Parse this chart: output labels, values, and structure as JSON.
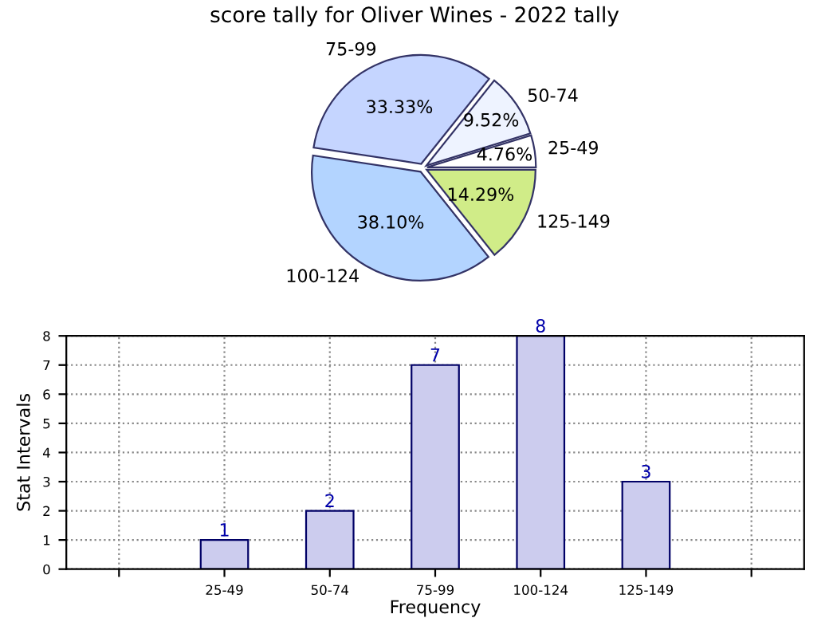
{
  "chart_data": [
    {
      "type": "pie",
      "title": "score tally for Oliver Wines - 2022 tally",
      "categories": [
        "25-49",
        "50-74",
        "75-99",
        "100-124",
        "125-149"
      ],
      "values": [
        4.76,
        9.52,
        33.33,
        38.1,
        14.29
      ],
      "colors": [
        "#ffffff",
        "#eef3ff",
        "#c5d5ff",
        "#b3d4ff",
        "#d0ec88"
      ],
      "value_labels": [
        "4.76%",
        "9.52%",
        "33.33%",
        "38.10%",
        "14.29%"
      ]
    },
    {
      "type": "bar",
      "categories": [
        null,
        "25-49",
        "50-74",
        "75-99",
        "100-124",
        "125-149",
        null
      ],
      "values": [
        null,
        1,
        2,
        7,
        8,
        3,
        null
      ],
      "color": "#ccccee",
      "xlabel": "Frequency",
      "ylabel": "Stat Intervals",
      "ylim": [
        0,
        8
      ],
      "yticks": [
        0,
        1,
        2,
        3,
        4,
        5,
        6,
        7,
        8
      ],
      "grid": true,
      "data_labels": true
    }
  ]
}
